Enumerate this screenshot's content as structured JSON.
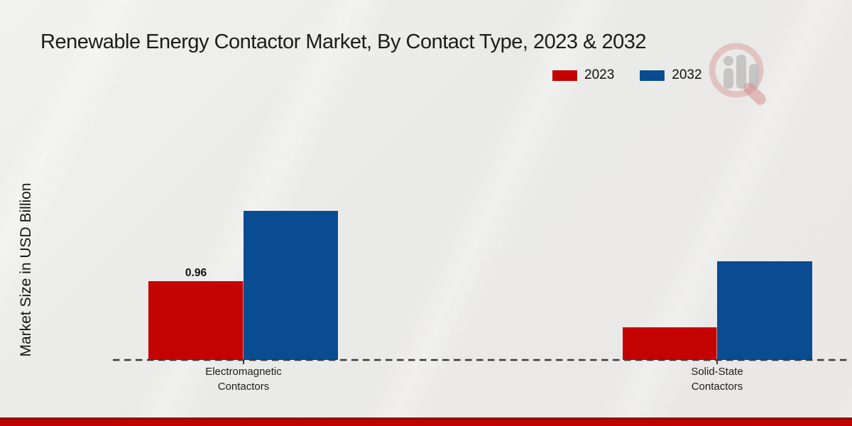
{
  "page": {
    "title": "Renewable Energy Contactor Market, By Contact Type, 2023 & 2032",
    "ylabel": "Market Size in USD Billion",
    "watermark_icon": "market-research-magnifier-bar-logo"
  },
  "legend": {
    "items": [
      {
        "label": "2023",
        "color": "#c40403"
      },
      {
        "label": "2032",
        "color": "#0a4c92"
      }
    ]
  },
  "chart_data": {
    "type": "bar",
    "title": "Renewable Energy Contactor Market, By Contact Type, 2023 & 2032",
    "xlabel": "",
    "ylabel": "Market Size in USD Billion",
    "categories": [
      "Electromagnetic Contactors",
      "Solid-State Contactors"
    ],
    "series": [
      {
        "name": "2023",
        "color": "#c40403",
        "values": [
          0.96,
          0.4
        ]
      },
      {
        "name": "2032",
        "color": "#0a4c92",
        "values": [
          1.82,
          1.2
        ]
      }
    ],
    "value_labels": [
      {
        "category_index": 0,
        "series_index": 0,
        "text": "0.96"
      }
    ],
    "xtick_labels_wrapped": [
      {
        "line1": "Electromagnetic",
        "line2": "Contactors"
      },
      {
        "line1": "Solid-State",
        "line2": "Contactors"
      }
    ],
    "ylim": [
      0,
      2.0
    ],
    "grid": false,
    "axis_style": "dashed-baseline-only",
    "legend_position": "top-right"
  },
  "colors": {
    "background": "#eceae8",
    "baseline_dash": "#3a3a3a",
    "bottom_strip_red": "#c10000",
    "title_text": "#1c1c1c"
  }
}
